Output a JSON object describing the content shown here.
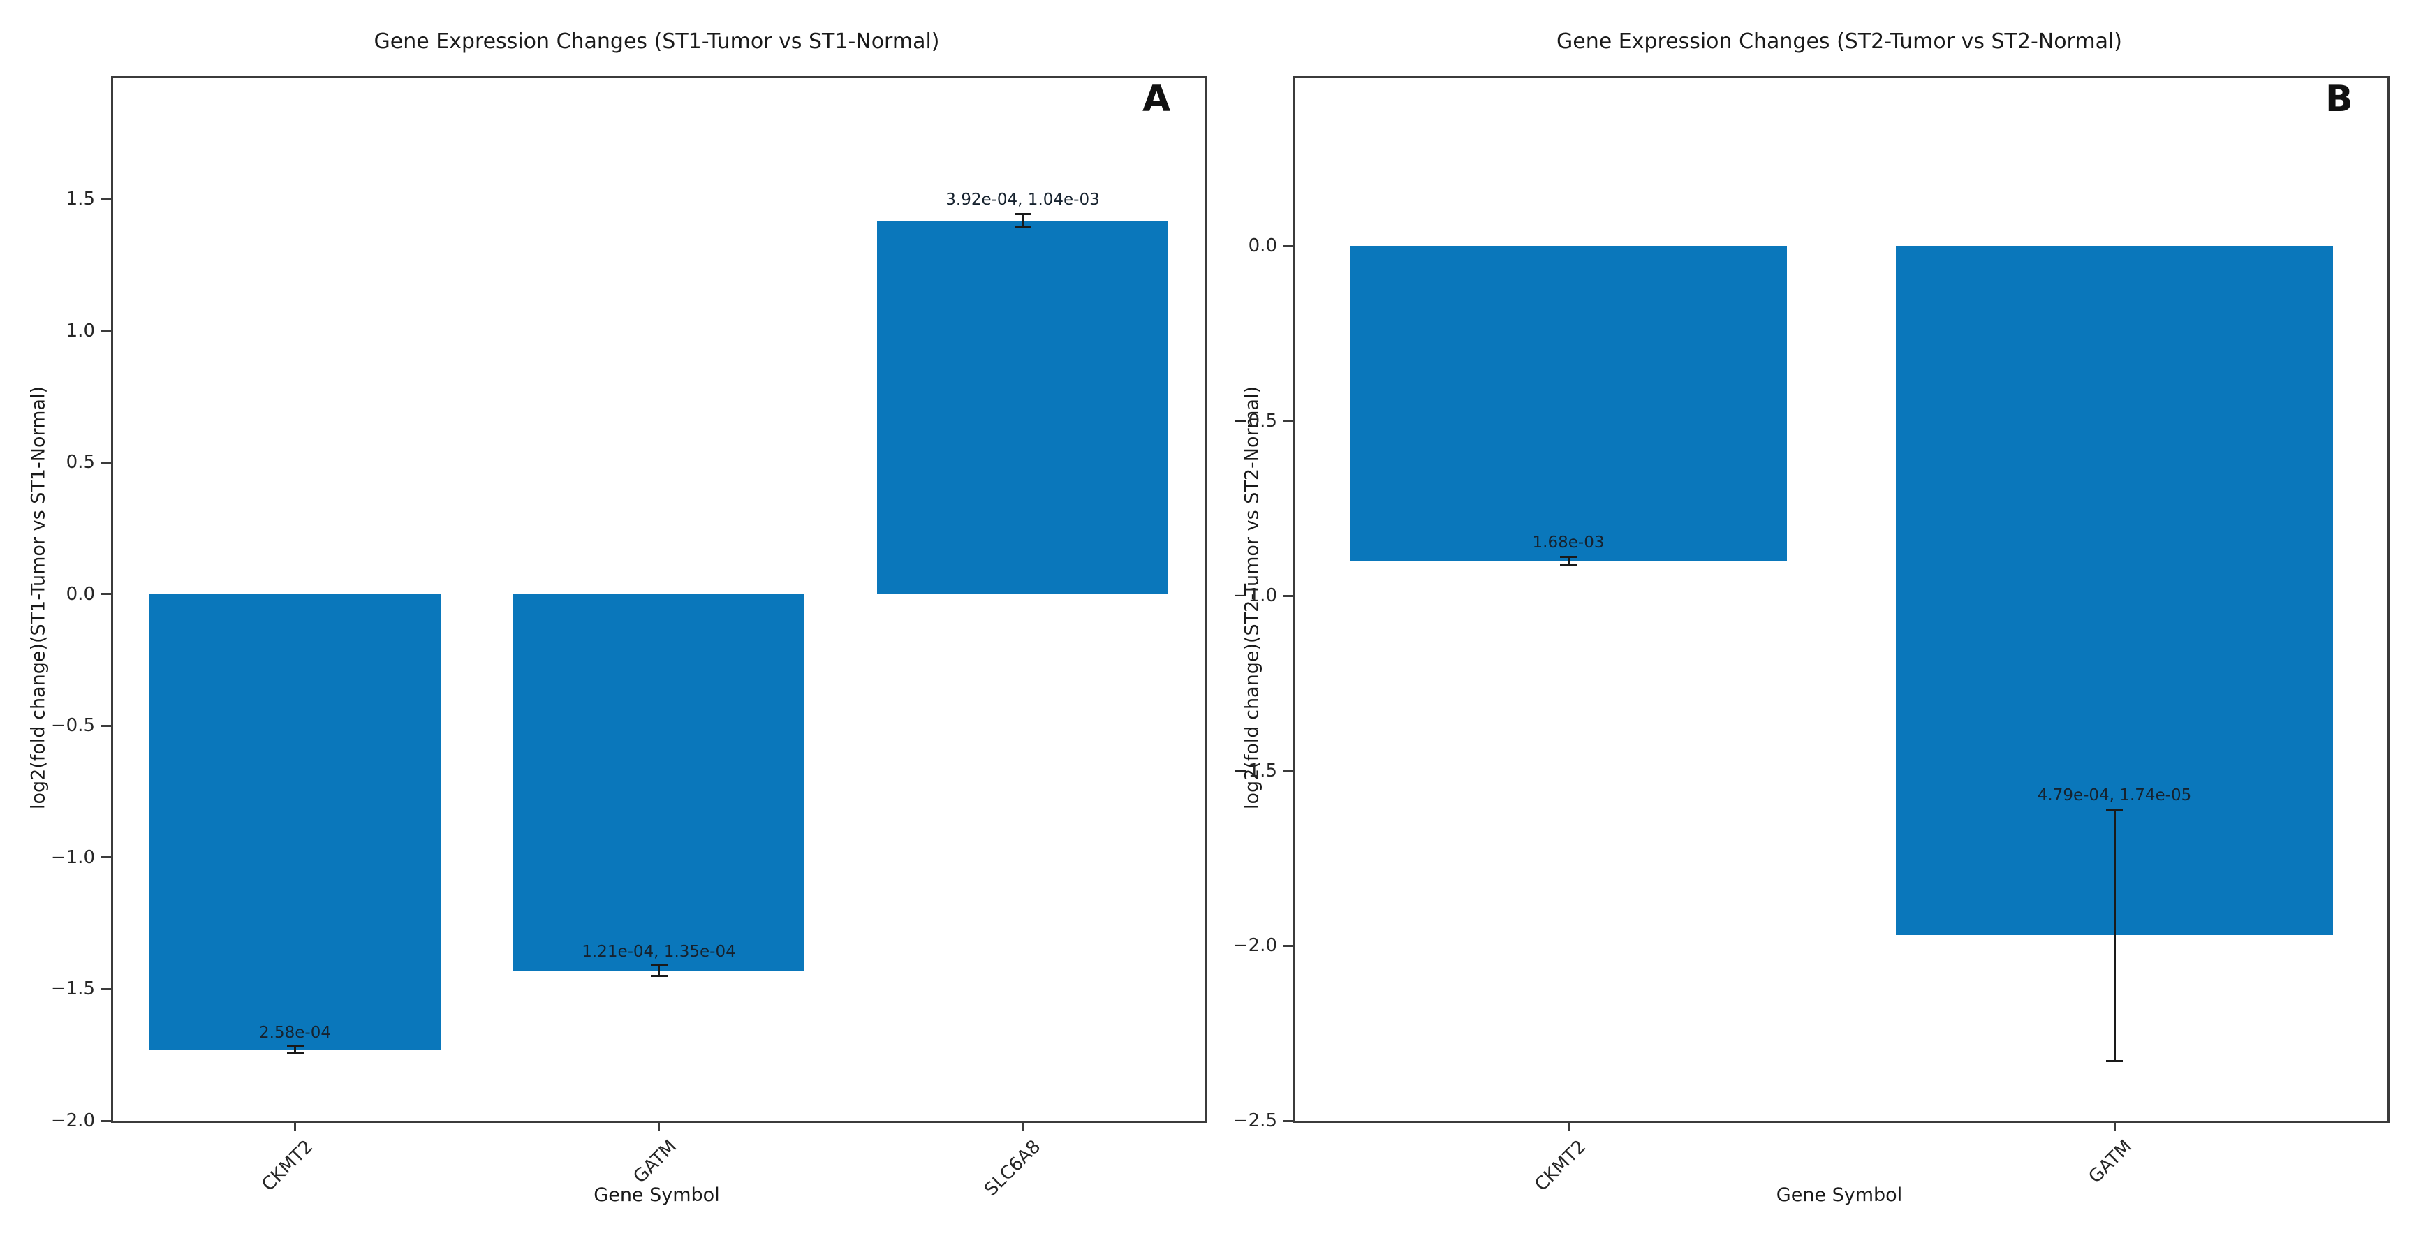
{
  "figure_title": "",
  "colors": {
    "bar": "#0a77bb",
    "spine": "#3b3b3b",
    "text": "#1a1a1a",
    "error_bar": "#1a1a1a",
    "background": "#ffffff"
  },
  "chart_data": [
    {
      "panel": "A",
      "type": "bar",
      "title": "Gene Expression Changes (ST1-Tumor vs ST1-Normal)",
      "xlabel": "Gene Symbol",
      "ylabel": "log2(fold change)(ST1-Tumor vs ST1-Normal)",
      "categories": [
        "CKMT2",
        "GATM",
        "SLC6A8"
      ],
      "values": [
        -1.73,
        -1.43,
        1.42
      ],
      "errors": [
        0.012,
        0.02,
        0.025
      ],
      "bar_labels": [
        "2.58e-04",
        "1.21e-04, 1.35e-04",
        "3.92e-04, 1.04e-03"
      ],
      "yticks": [
        1.5,
        1.0,
        0.5,
        0.0,
        -0.5,
        -1.0,
        -1.5,
        -2.0
      ],
      "ylim": [
        -2.0,
        1.96
      ],
      "legend": "none",
      "grid": false
    },
    {
      "panel": "B",
      "type": "bar",
      "title": "Gene Expression Changes (ST2-Tumor vs ST2-Normal)",
      "xlabel": "Gene Symbol",
      "ylabel": "log2(fold change)(ST2-Tumor vs ST2-Normal)",
      "categories": [
        "CKMT2",
        "GATM"
      ],
      "values": [
        -0.9,
        -1.97
      ],
      "errors": [
        0.012,
        0.36
      ],
      "bar_labels": [
        "1.68e-03",
        "4.79e-04, 1.74e-05"
      ],
      "yticks": [
        0.0,
        -0.5,
        -1.0,
        -1.5,
        -2.0,
        -2.5
      ],
      "ylim": [
        -2.5,
        0.48
      ],
      "legend": "none",
      "grid": false
    }
  ]
}
